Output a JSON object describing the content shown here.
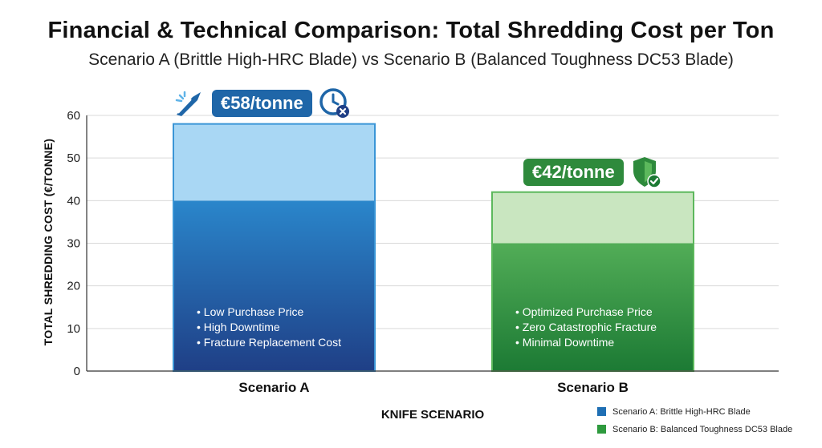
{
  "header": {
    "title": "Financial & Technical Comparison: Total Shredding Cost per Ton",
    "subtitle": "Scenario A (Brittle High-HRC Blade) vs Scenario B (Balanced Toughness DC53 Blade)"
  },
  "chart_data": {
    "type": "bar",
    "stacked": true,
    "categories": [
      "Scenario A",
      "Scenario B"
    ],
    "values": [
      58,
      42
    ],
    "segments": [
      {
        "category": "Scenario A",
        "base": 40,
        "top": 18
      },
      {
        "category": "Scenario B",
        "base": 30,
        "top": 12
      }
    ],
    "xlabel": "KNIFE SCENARIO",
    "ylabel": "TOTAL SHREDDING COST (€/TONNE)",
    "ylim": [
      0,
      60
    ],
    "yticks": [
      "0",
      "10",
      "20",
      "30",
      "40",
      "50",
      "60"
    ],
    "grid": true,
    "legend_position": "bottom-right",
    "legend": [
      {
        "label": "Scenario A: Brittle High-HRC Blade",
        "color": "#1f6fb4"
      },
      {
        "label": "Scenario B: Balanced Toughness DC53 Blade",
        "color": "#2e9a3e"
      }
    ],
    "value_labels": [
      "€58/tonne",
      "€42/tonne"
    ],
    "annotations": {
      "a": [
        "• Low Purchase Price",
        "• High Downtime",
        "• Fracture Replacement Cost"
      ],
      "b": [
        "• Optimized Purchase Price",
        "• Zero Catastrophic Fracture",
        "• Minimal Downtime"
      ]
    }
  },
  "icons": {
    "a_left": "broken-blade-icon",
    "a_right": "clock-cross-icon",
    "b_right": "shield-check-icon"
  },
  "colors": {
    "a_dark": "#1f3f86",
    "a_mid": "#2a86cb",
    "a_light": "#a9d7f4",
    "b_dark": "#1c7a34",
    "b_mid": "#52ad57",
    "b_light": "#c9e6c0",
    "badge_a": "#1f66a8",
    "badge_b": "#2e8a3c"
  }
}
